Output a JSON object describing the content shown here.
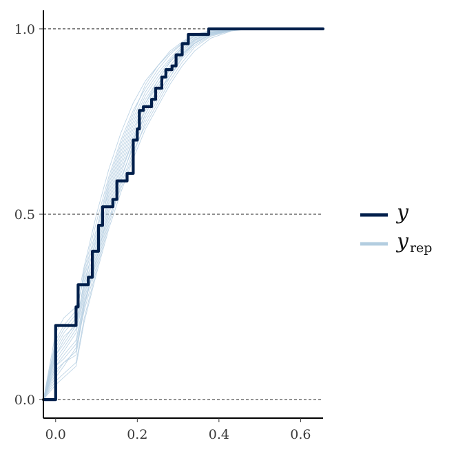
{
  "chart_data": {
    "type": "line",
    "title": "",
    "xlabel": "",
    "ylabel": "",
    "xlim": [
      -0.03,
      0.655
    ],
    "ylim": [
      -0.05,
      1.05
    ],
    "x_ticks": [
      {
        "value": 0.0,
        "label": "0.0"
      },
      {
        "value": 0.2,
        "label": "0.2"
      },
      {
        "value": 0.4,
        "label": "0.4"
      },
      {
        "value": 0.6,
        "label": "0.6"
      }
    ],
    "y_ticks": [
      {
        "value": 0.0,
        "label": "0.0"
      },
      {
        "value": 0.5,
        "label": "0.5"
      },
      {
        "value": 1.0,
        "label": "1.0"
      }
    ],
    "gridlines": {
      "horizontal": [
        0.0,
        0.5,
        1.0
      ],
      "style": "dashed"
    },
    "legend": {
      "position": "right",
      "items": [
        {
          "key": "y",
          "label": "y",
          "subscript": "",
          "color": "#011f4b"
        },
        {
          "key": "yrep",
          "label": "y",
          "subscript": "rep",
          "color": "#b3cde0"
        }
      ]
    },
    "series": [
      {
        "key": "y",
        "color": "#011f4b",
        "step": true,
        "x": [
          -0.03,
          0.0,
          0.05,
          0.055,
          0.08,
          0.09,
          0.105,
          0.115,
          0.14,
          0.15,
          0.175,
          0.19,
          0.2,
          0.205,
          0.215,
          0.235,
          0.245,
          0.26,
          0.27,
          0.285,
          0.295,
          0.31,
          0.325,
          0.375,
          0.655
        ],
        "y": [
          0.0,
          0.2,
          0.25,
          0.31,
          0.33,
          0.4,
          0.47,
          0.52,
          0.54,
          0.59,
          0.61,
          0.7,
          0.73,
          0.78,
          0.79,
          0.81,
          0.84,
          0.87,
          0.89,
          0.9,
          0.93,
          0.96,
          0.985,
          1.0,
          1.0
        ]
      },
      {
        "key": "yrep",
        "color": "#b3cde0",
        "x": [
          -0.03,
          0.0,
          0.02,
          0.05,
          0.07,
          0.1,
          0.13,
          0.16,
          0.19,
          0.22,
          0.25,
          0.28,
          0.31,
          0.34,
          0.38,
          0.43,
          0.48,
          0.655
        ],
        "y": [
          0.0,
          0.12,
          0.15,
          0.2,
          0.3,
          0.42,
          0.55,
          0.65,
          0.73,
          0.8,
          0.86,
          0.91,
          0.95,
          0.975,
          0.99,
          0.998,
          1.0,
          1.0
        ]
      },
      {
        "key": "yrep",
        "color": "#b3cde0",
        "x": [
          -0.03,
          0.0,
          0.02,
          0.05,
          0.07,
          0.1,
          0.13,
          0.16,
          0.19,
          0.22,
          0.25,
          0.28,
          0.31,
          0.34,
          0.38,
          0.43,
          0.48,
          0.655
        ],
        "y": [
          0.0,
          0.08,
          0.1,
          0.12,
          0.25,
          0.38,
          0.5,
          0.6,
          0.68,
          0.76,
          0.82,
          0.88,
          0.93,
          0.96,
          0.985,
          0.997,
          1.0,
          1.0
        ]
      },
      {
        "key": "yrep",
        "color": "#b3cde0",
        "x": [
          -0.03,
          0.0,
          0.02,
          0.05,
          0.07,
          0.1,
          0.13,
          0.16,
          0.19,
          0.22,
          0.25,
          0.28,
          0.31,
          0.34,
          0.38,
          0.43,
          0.48,
          0.655
        ],
        "y": [
          0.0,
          0.16,
          0.2,
          0.24,
          0.33,
          0.45,
          0.58,
          0.68,
          0.76,
          0.83,
          0.88,
          0.92,
          0.955,
          0.98,
          0.99,
          0.998,
          1.0,
          1.0
        ]
      },
      {
        "key": "yrep",
        "color": "#b3cde0",
        "x": [
          -0.03,
          0.0,
          0.02,
          0.05,
          0.07,
          0.1,
          0.13,
          0.16,
          0.19,
          0.22,
          0.25,
          0.28,
          0.31,
          0.34,
          0.38,
          0.43,
          0.48,
          0.655
        ],
        "y": [
          0.0,
          0.05,
          0.07,
          0.1,
          0.22,
          0.35,
          0.47,
          0.58,
          0.67,
          0.74,
          0.8,
          0.86,
          0.91,
          0.95,
          0.98,
          0.995,
          1.0,
          1.0
        ]
      },
      {
        "key": "yrep",
        "color": "#b3cde0",
        "x": [
          -0.03,
          0.0,
          0.02,
          0.05,
          0.07,
          0.1,
          0.13,
          0.16,
          0.19,
          0.22,
          0.25,
          0.28,
          0.31,
          0.34,
          0.38,
          0.43,
          0.48,
          0.655
        ],
        "y": [
          0.0,
          0.1,
          0.13,
          0.18,
          0.28,
          0.4,
          0.53,
          0.63,
          0.71,
          0.78,
          0.84,
          0.9,
          0.94,
          0.97,
          0.99,
          0.998,
          1.0,
          1.0
        ]
      },
      {
        "key": "yrep",
        "color": "#b3cde0",
        "x": [
          -0.03,
          0.0,
          0.02,
          0.05,
          0.07,
          0.1,
          0.13,
          0.16,
          0.19,
          0.22,
          0.25,
          0.28,
          0.31,
          0.34,
          0.38,
          0.43,
          0.48,
          0.655
        ],
        "y": [
          0.0,
          0.14,
          0.18,
          0.22,
          0.35,
          0.48,
          0.6,
          0.7,
          0.78,
          0.84,
          0.89,
          0.93,
          0.96,
          0.98,
          0.992,
          0.999,
          1.0,
          1.0
        ]
      },
      {
        "key": "yrep",
        "color": "#b3cde0",
        "x": [
          -0.03,
          0.0,
          0.02,
          0.05,
          0.07,
          0.1,
          0.13,
          0.16,
          0.19,
          0.22,
          0.25,
          0.28,
          0.31,
          0.34,
          0.38,
          0.43,
          0.48,
          0.655
        ],
        "y": [
          0.0,
          0.06,
          0.09,
          0.14,
          0.24,
          0.36,
          0.48,
          0.59,
          0.69,
          0.77,
          0.83,
          0.87,
          0.92,
          0.955,
          0.982,
          0.996,
          1.0,
          1.0
        ]
      },
      {
        "key": "yrep",
        "color": "#b3cde0",
        "x": [
          -0.03,
          0.0,
          0.02,
          0.05,
          0.07,
          0.1,
          0.13,
          0.16,
          0.19,
          0.22,
          0.25,
          0.28,
          0.31,
          0.34,
          0.38,
          0.43,
          0.48,
          0.655
        ],
        "y": [
          0.0,
          0.12,
          0.16,
          0.21,
          0.31,
          0.44,
          0.56,
          0.66,
          0.74,
          0.81,
          0.86,
          0.91,
          0.945,
          0.972,
          0.988,
          0.997,
          1.0,
          1.0
        ]
      },
      {
        "key": "yrep",
        "color": "#b3cde0",
        "x": [
          -0.03,
          0.0,
          0.02,
          0.05,
          0.07,
          0.1,
          0.13,
          0.16,
          0.19,
          0.22,
          0.25,
          0.28,
          0.31,
          0.34,
          0.38,
          0.43,
          0.48,
          0.655
        ],
        "y": [
          0.0,
          0.09,
          0.12,
          0.16,
          0.27,
          0.39,
          0.52,
          0.62,
          0.7,
          0.79,
          0.85,
          0.89,
          0.935,
          0.965,
          0.986,
          0.997,
          1.0,
          1.0
        ]
      },
      {
        "key": "yrep",
        "color": "#b3cde0",
        "x": [
          -0.03,
          0.0,
          0.02,
          0.05,
          0.07,
          0.1,
          0.13,
          0.16,
          0.19,
          0.22,
          0.25,
          0.28,
          0.31,
          0.34,
          0.38,
          0.43,
          0.48,
          0.655
        ],
        "y": [
          0.0,
          0.18,
          0.22,
          0.25,
          0.36,
          0.5,
          0.62,
          0.72,
          0.8,
          0.86,
          0.9,
          0.94,
          0.965,
          0.985,
          0.995,
          0.999,
          1.0,
          1.0
        ]
      },
      {
        "key": "yrep",
        "color": "#b3cde0",
        "x": [
          -0.03,
          0.0,
          0.02,
          0.05,
          0.07,
          0.1,
          0.13,
          0.16,
          0.19,
          0.22,
          0.25,
          0.28,
          0.31,
          0.34,
          0.38,
          0.43,
          0.48,
          0.655
        ],
        "y": [
          0.0,
          0.07,
          0.1,
          0.13,
          0.26,
          0.37,
          0.49,
          0.57,
          0.66,
          0.75,
          0.81,
          0.87,
          0.925,
          0.96,
          0.984,
          0.996,
          1.0,
          1.0
        ]
      },
      {
        "key": "yrep",
        "color": "#b3cde0",
        "x": [
          -0.03,
          0.0,
          0.02,
          0.05,
          0.07,
          0.1,
          0.13,
          0.16,
          0.19,
          0.22,
          0.25,
          0.28,
          0.31,
          0.34,
          0.38,
          0.43,
          0.48,
          0.655
        ],
        "y": [
          0.0,
          0.11,
          0.14,
          0.19,
          0.29,
          0.41,
          0.54,
          0.64,
          0.72,
          0.8,
          0.85,
          0.9,
          0.94,
          0.968,
          0.988,
          0.998,
          1.0,
          1.0
        ]
      },
      {
        "key": "yrep",
        "color": "#b3cde0",
        "x": [
          -0.03,
          0.0,
          0.02,
          0.05,
          0.07,
          0.1,
          0.13,
          0.16,
          0.19,
          0.22,
          0.25,
          0.28,
          0.31,
          0.34,
          0.38,
          0.43,
          0.48,
          0.655
        ],
        "y": [
          0.0,
          0.15,
          0.19,
          0.23,
          0.34,
          0.46,
          0.59,
          0.69,
          0.77,
          0.85,
          0.9,
          0.935,
          0.962,
          0.982,
          0.994,
          0.999,
          1.0,
          1.0
        ]
      },
      {
        "key": "yrep",
        "color": "#b3cde0",
        "x": [
          -0.03,
          0.0,
          0.02,
          0.05,
          0.07,
          0.1,
          0.13,
          0.16,
          0.19,
          0.22,
          0.25,
          0.28,
          0.31,
          0.34,
          0.38,
          0.43,
          0.48,
          0.655
        ],
        "y": [
          0.0,
          0.04,
          0.06,
          0.09,
          0.21,
          0.34,
          0.46,
          0.56,
          0.65,
          0.73,
          0.79,
          0.85,
          0.9,
          0.94,
          0.975,
          0.994,
          1.0,
          1.0
        ]
      },
      {
        "key": "yrep",
        "color": "#b3cde0",
        "x": [
          -0.03,
          0.0,
          0.02,
          0.05,
          0.07,
          0.1,
          0.13,
          0.16,
          0.19,
          0.22,
          0.25,
          0.28,
          0.31,
          0.34,
          0.38,
          0.43,
          0.48,
          0.655
        ],
        "y": [
          0.0,
          0.13,
          0.17,
          0.2,
          0.32,
          0.43,
          0.57,
          0.67,
          0.75,
          0.82,
          0.87,
          0.915,
          0.95,
          0.976,
          0.991,
          0.998,
          1.0,
          1.0
        ]
      },
      {
        "key": "yrep",
        "color": "#b3cde0",
        "x": [
          -0.03,
          0.0,
          0.02,
          0.05,
          0.07,
          0.1,
          0.13,
          0.16,
          0.19,
          0.22,
          0.25,
          0.28,
          0.31,
          0.34,
          0.38,
          0.43,
          0.48,
          0.655
        ],
        "y": [
          0.0,
          0.09,
          0.11,
          0.15,
          0.26,
          0.38,
          0.51,
          0.61,
          0.7,
          0.77,
          0.84,
          0.89,
          0.932,
          0.962,
          0.985,
          0.996,
          1.0,
          1.0
        ]
      }
    ]
  }
}
